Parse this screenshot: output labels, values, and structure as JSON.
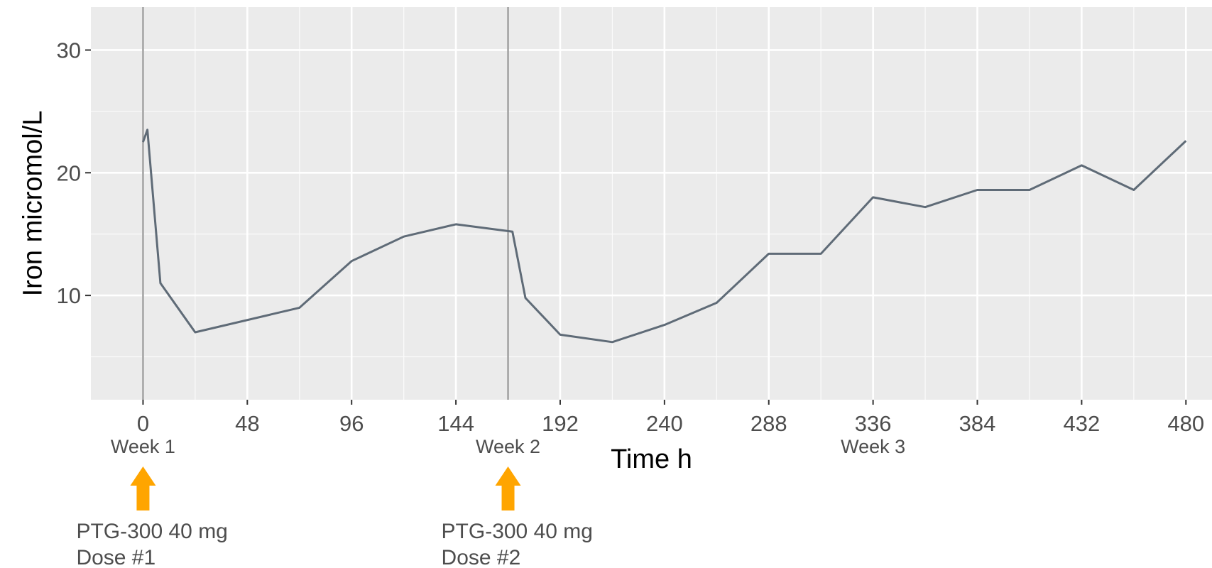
{
  "chart_data": {
    "type": "line",
    "title": "",
    "xlabel": "Time h",
    "ylabel": "Iron micromol/L",
    "xlim": [
      -24,
      492
    ],
    "ylim": [
      1.5,
      33.5
    ],
    "x_ticks": [
      0,
      48,
      96,
      144,
      192,
      240,
      288,
      336,
      384,
      432,
      480
    ],
    "y_ticks": [
      10,
      20,
      30
    ],
    "grid": true,
    "panel_background": "#ebebeb",
    "line_color": "#5f6b77",
    "series": [
      {
        "x": [
          0,
          2,
          8,
          24,
          72,
          96,
          120,
          144,
          170,
          176,
          192,
          216,
          240,
          264,
          288,
          312,
          336,
          360,
          384,
          408,
          432,
          456,
          480
        ],
        "y": [
          22.5,
          23.5,
          11.0,
          7.0,
          9.0,
          12.8,
          14.8,
          15.8,
          15.2,
          9.8,
          6.8,
          6.2,
          7.6,
          9.4,
          13.4,
          13.4,
          18.0,
          17.2,
          18.6,
          18.6,
          20.6,
          18.6,
          22.6
        ]
      }
    ],
    "vlines": [
      {
        "x": 0,
        "color": "#a0a0a0"
      },
      {
        "x": 168,
        "color": "#a0a0a0"
      }
    ],
    "week_labels": [
      {
        "x": 0,
        "label": "Week 1"
      },
      {
        "x": 168,
        "label": "Week 2"
      },
      {
        "x": 336,
        "label": "Week 3"
      }
    ],
    "doses": [
      {
        "x": 0,
        "line1": "PTG-300 40 mg",
        "line2": "Dose #1"
      },
      {
        "x": 168,
        "line1": "PTG-300 40 mg",
        "line2": "Dose #2"
      }
    ],
    "arrow_color": "#ffa500"
  }
}
